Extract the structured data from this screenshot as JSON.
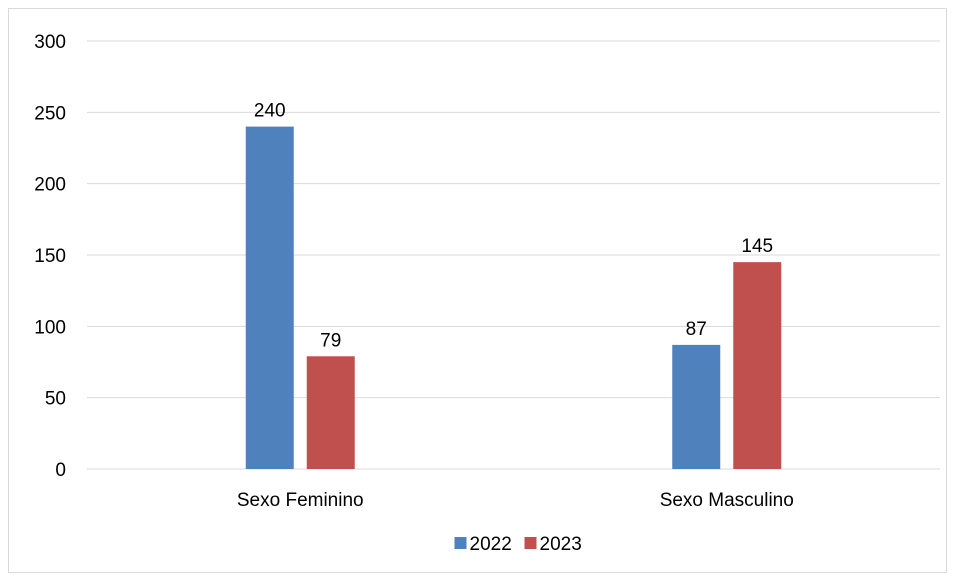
{
  "chart_data": {
    "type": "bar",
    "title": "",
    "xlabel": "",
    "ylabel": "",
    "categories": [
      "Sexo Feminino",
      "Sexo Masculino"
    ],
    "series": [
      {
        "name": "2022",
        "values": [
          240,
          87
        ],
        "color": "#4f81bd"
      },
      {
        "name": "2023",
        "values": [
          79,
          145
        ],
        "color": "#c0504d"
      }
    ],
    "ylim": [
      0,
      300
    ],
    "yticks": [
      "0",
      "50",
      "100",
      "150",
      "200",
      "250",
      "300"
    ],
    "grid": true,
    "data_labels": true,
    "legend_position": "bottom"
  }
}
